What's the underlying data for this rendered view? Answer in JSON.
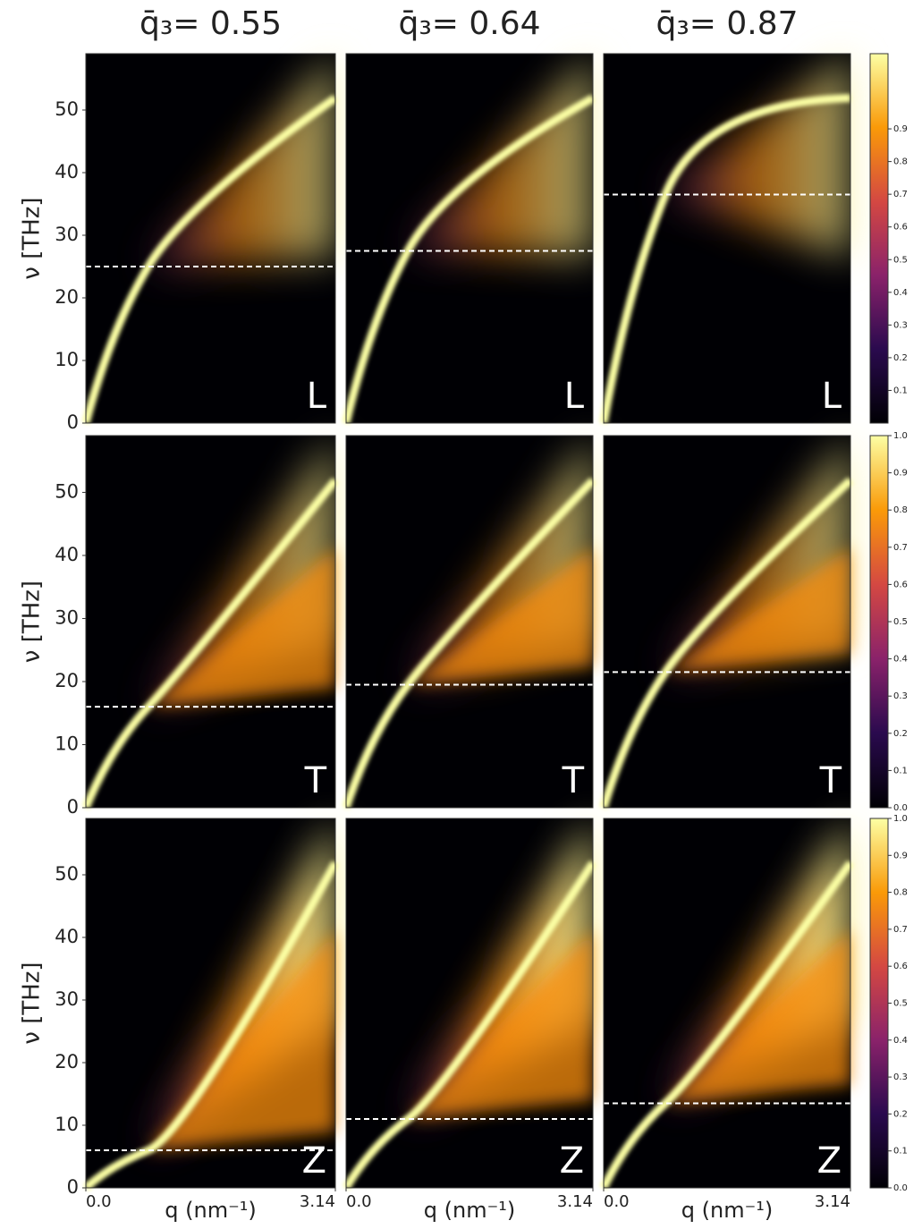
{
  "chart_data": [
    {
      "type": "heatmap",
      "title": "q̄₃= 0.55",
      "ylabel": "ν [THz]",
      "ylim": [
        0,
        59
      ],
      "yticks": [
        0,
        10,
        20,
        30,
        40,
        50
      ],
      "label": "L",
      "dashed_line": 25
    },
    {
      "type": "heatmap",
      "title": "q̄₃= 0.64",
      "ylim": [
        0,
        59
      ],
      "label": "L",
      "dashed_line": 27.5
    },
    {
      "type": "heatmap",
      "title": "q̄₃= 0.87",
      "ylim": [
        0,
        59
      ],
      "label": "L",
      "dashed_line": 36.5
    },
    {
      "type": "heatmap",
      "ylabel": "ν [THz]",
      "ylim": [
        0,
        59
      ],
      "yticks": [
        0,
        10,
        20,
        30,
        40,
        50
      ],
      "label": "T",
      "dashed_line": 16
    },
    {
      "type": "heatmap",
      "ylim": [
        0,
        59
      ],
      "label": "T",
      "dashed_line": 19.5
    },
    {
      "type": "heatmap",
      "ylim": [
        0,
        59
      ],
      "label": "T",
      "dashed_line": 21.5
    },
    {
      "type": "heatmap",
      "ylabel": "ν [THz]",
      "xlabel": "q (nm⁻¹)",
      "ylim": [
        0,
        59
      ],
      "yticks": [
        0,
        10,
        20,
        30,
        40,
        50
      ],
      "xlim": [
        0,
        3.14
      ],
      "xticks": [
        {
          "value": 0,
          "label": "0.0"
        },
        3.14
      ],
      "label": "Z",
      "dashed_line": 6
    },
    {
      "type": "heatmap",
      "xlabel": "q (nm⁻¹)",
      "ylim": [
        0,
        59
      ],
      "xlim": [
        0,
        3.14
      ],
      "xticks": [
        {
          "value": 0,
          "label": "0.0"
        },
        3.14
      ],
      "label": "Z",
      "dashed_line": 11
    },
    {
      "type": "heatmap",
      "xlabel": "q (nm⁻¹)",
      "ylim": [
        0,
        59
      ],
      "xlim": [
        0,
        3.14
      ],
      "xticks": [
        {
          "value": 0,
          "label": "0.0"
        },
        3.14
      ],
      "label": "Z",
      "dashed_line": 13.5
    }
  ],
  "colorbars": [
    {
      "lim": [
        0,
        1.13
      ],
      "ticks": [
        0.1,
        0.2,
        0.3,
        0.4,
        0.5,
        0.6,
        0.7,
        0.8,
        0.9
      ]
    },
    {
      "lim": [
        0,
        1
      ],
      "ticks": [
        {
          "value": 0,
          "label": "0.0"
        },
        0.1,
        0.2,
        0.3,
        0.4,
        0.5,
        0.6,
        0.7,
        0.8,
        0.9,
        {
          "value": 1,
          "label": "1.0"
        }
      ]
    },
    {
      "lim": [
        0,
        1
      ],
      "ticks": [
        {
          "value": 0,
          "label": "0.0"
        },
        0.1,
        0.2,
        0.3,
        0.4,
        0.5,
        0.6,
        0.7,
        0.8,
        0.9,
        {
          "value": 1,
          "label": "1.0"
        }
      ]
    }
  ]
}
